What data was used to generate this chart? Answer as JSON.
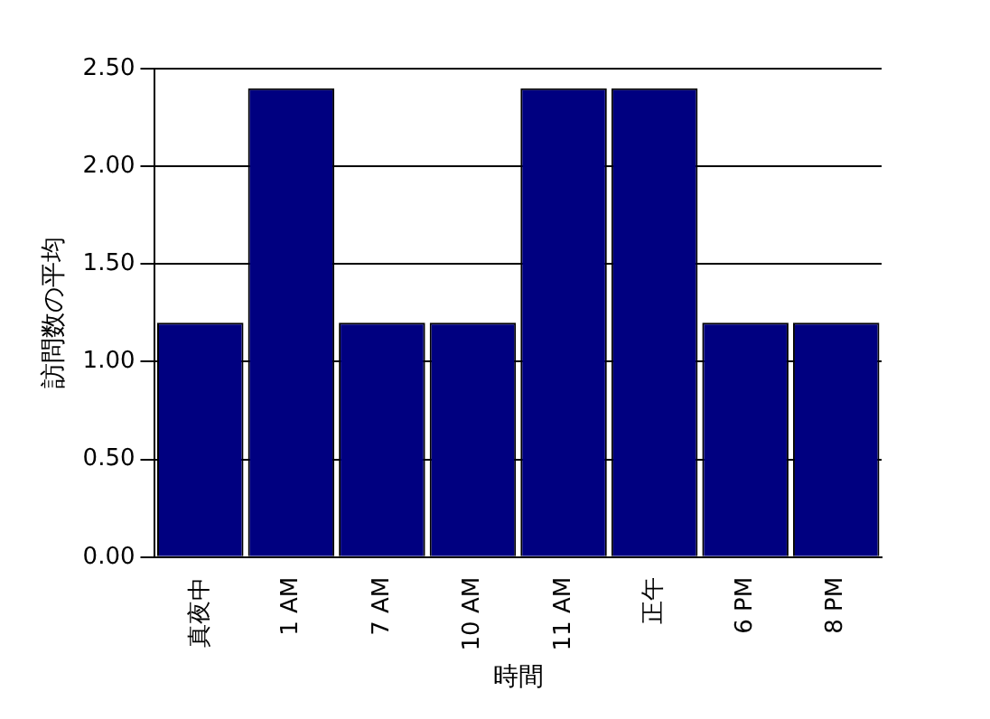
{
  "chart_data": {
    "type": "bar",
    "xlabel": "時間",
    "ylabel": "訪問数の平均",
    "categories": [
      "真夜中",
      "1 AM",
      "7 AM",
      "10 AM",
      "11 AM",
      "正午",
      "6 PM",
      "8 PM"
    ],
    "values": [
      1.2,
      2.4,
      1.2,
      1.2,
      2.4,
      2.4,
      1.2,
      1.2
    ],
    "color": "#000080",
    "ylim": [
      0,
      2.5
    ],
    "yticks": [
      {
        "value": 0,
        "label": "0.00"
      },
      {
        "value": 0.5,
        "label": "0.50"
      },
      {
        "value": 1,
        "label": "1.00"
      },
      {
        "value": 1.5,
        "label": "1.50"
      },
      {
        "value": 2,
        "label": "2.00"
      },
      {
        "value": 2.5,
        "label": "2.50"
      }
    ],
    "grid": "y",
    "legend": false
  }
}
